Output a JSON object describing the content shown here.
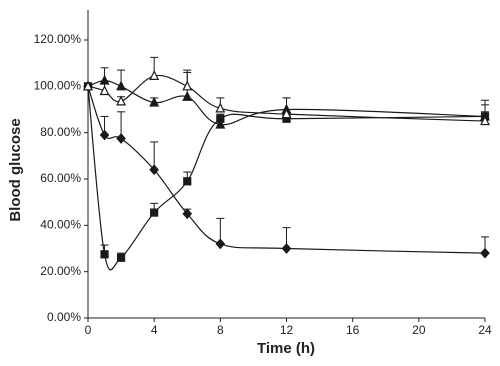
{
  "chart_data": {
    "type": "line",
    "xlabel": "Time (h)",
    "ylabel": "Blood glucose",
    "x": [
      0,
      1,
      2,
      4,
      6,
      8,
      12,
      24
    ],
    "xlim": [
      0,
      24
    ],
    "xticks": [
      0,
      4,
      8,
      12,
      16,
      20,
      24
    ],
    "ylim": [
      0,
      120
    ],
    "yticks": [
      {
        "value": 0,
        "label": "0.00%"
      },
      {
        "value": 20,
        "label": "20.00%"
      },
      {
        "value": 40,
        "label": "40.00%"
      },
      {
        "value": 60,
        "label": "60.00%"
      },
      {
        "value": 80,
        "label": "80.00%"
      },
      {
        "value": 100,
        "label": "100.00%"
      },
      {
        "value": 120,
        "label": "120.00%"
      }
    ],
    "series": [
      {
        "marker": "square",
        "color": "#1a1a1a",
        "values": [
          100,
          27.5,
          26,
          45.5,
          59,
          86,
          86,
          87
        ],
        "errors": [
          1,
          4,
          2,
          4,
          4,
          2,
          9,
          2
        ]
      },
      {
        "marker": "diamond",
        "color": "#1a1a1a",
        "values": [
          100,
          79,
          77.5,
          64,
          45,
          32,
          30,
          28
        ],
        "errors": [
          1,
          8,
          11.5,
          12,
          2,
          11,
          9,
          7
        ]
      },
      {
        "marker": "triangle",
        "color": "#1a1a1a",
        "values": [
          100,
          102.5,
          100,
          93,
          95.5,
          83.5,
          90,
          87
        ],
        "errors": [
          1,
          5.5,
          7,
          2,
          10.5,
          2,
          5,
          7
        ]
      },
      {
        "marker": "triangle-open",
        "color": "#1a1a1a",
        "values": [
          100,
          98,
          93.5,
          104.5,
          100,
          90.5,
          88,
          85
        ],
        "errors": [
          1,
          4,
          2,
          8,
          7,
          4.5,
          2,
          7
        ]
      }
    ]
  }
}
